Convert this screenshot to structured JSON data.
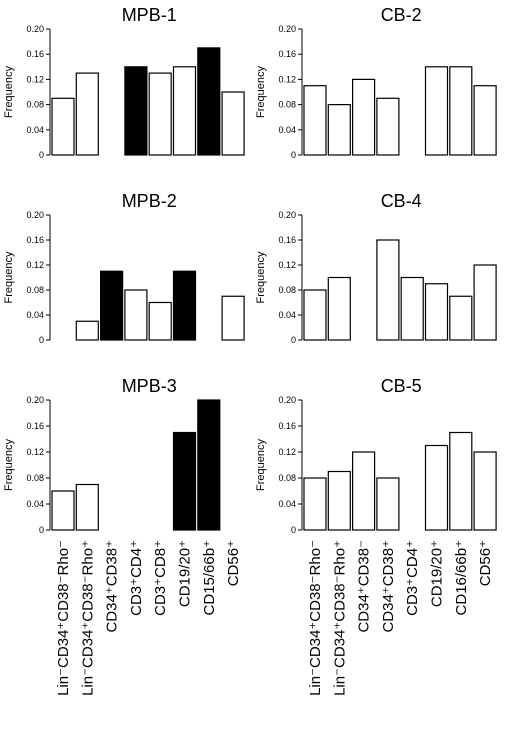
{
  "chart_data": [
    {
      "type": "bar",
      "title": "MPB-1",
      "ylabel": "Frequency",
      "ylim": [
        0,
        0.2
      ],
      "yticks": [
        "0",
        "0.04",
        "0.08",
        "0.12",
        "0.16",
        "0.20"
      ],
      "categories": [
        "Lin⁻CD34⁺CD38⁻Rho⁻",
        "Lin⁻CD34⁺CD38⁻Rho⁺",
        "CD34⁺CD38⁺",
        "CD3⁺CD4⁺",
        "CD3⁺CD8⁺",
        "CD19/20⁺",
        "CD15/66b⁺",
        "CD56⁺"
      ],
      "values": [
        0.09,
        0.13,
        null,
        0.14,
        0.13,
        0.14,
        0.17,
        0.1
      ],
      "fills": [
        "#ffffff",
        "#ffffff",
        "#ffffff",
        "#000000",
        "#ffffff",
        "#ffffff",
        "#000000",
        "#ffffff"
      ]
    },
    {
      "type": "bar",
      "title": "CB-2",
      "ylabel": "Frequency",
      "ylim": [
        0,
        0.2
      ],
      "yticks": [
        "0",
        "0.04",
        "0.08",
        "0.12",
        "0.16",
        "0.20"
      ],
      "categories": [
        "Lin⁻CD34⁺CD38⁻Rho⁻",
        "Lin⁻CD34⁺CD38⁻Rho⁺",
        "CD34⁺CD38⁻",
        "CD34⁺CD38⁺",
        "CD3⁺CD4⁺",
        "CD19/20⁺",
        "CD16/66b⁺",
        "CD56⁺"
      ],
      "values": [
        0.11,
        0.08,
        0.12,
        0.09,
        null,
        0.14,
        0.14,
        0.11
      ],
      "fills": [
        "#ffffff",
        "#ffffff",
        "#ffffff",
        "#ffffff",
        "#ffffff",
        "#ffffff",
        "#ffffff",
        "#ffffff"
      ]
    },
    {
      "type": "bar",
      "title": "MPB-2",
      "ylabel": "Frequency",
      "ylim": [
        0,
        0.2
      ],
      "yticks": [
        "0",
        "0.04",
        "0.08",
        "0.12",
        "0.16",
        "0.20"
      ],
      "categories": [
        "Lin⁻CD34⁺CD38⁻Rho⁻",
        "Lin⁻CD34⁺CD38⁻Rho⁺",
        "CD34⁺CD38⁺",
        "CD3⁺CD4⁺",
        "CD3⁺CD8⁺",
        "CD19/20⁺",
        "CD15/66b⁺",
        "CD56⁺"
      ],
      "values": [
        null,
        0.03,
        0.11,
        0.08,
        0.06,
        0.11,
        null,
        0.07
      ],
      "fills": [
        "#ffffff",
        "#ffffff",
        "#000000",
        "#ffffff",
        "#ffffff",
        "#000000",
        "#ffffff",
        "#ffffff"
      ]
    },
    {
      "type": "bar",
      "title": "CB-4",
      "ylabel": "Frequency",
      "ylim": [
        0,
        0.2
      ],
      "yticks": [
        "0",
        "0.04",
        "0.08",
        "0.12",
        "0.16",
        "0.20"
      ],
      "categories": [
        "Lin⁻CD34⁺CD38⁻Rho⁻",
        "Lin⁻CD34⁺CD38⁻Rho⁺",
        "CD34⁺CD38⁻",
        "CD34⁺CD38⁺",
        "CD3⁺CD4⁺",
        "CD19/20⁺",
        "CD16/66b⁺",
        "CD56⁺"
      ],
      "values": [
        0.08,
        0.1,
        null,
        0.16,
        0.1,
        0.09,
        0.07,
        0.12
      ],
      "fills": [
        "#ffffff",
        "#ffffff",
        "#ffffff",
        "#ffffff",
        "#ffffff",
        "#ffffff",
        "#ffffff",
        "#ffffff"
      ]
    },
    {
      "type": "bar",
      "title": "MPB-3",
      "ylabel": "Frequency",
      "ylim": [
        0,
        0.2
      ],
      "yticks": [
        "0",
        "0.04",
        "0.08",
        "0.12",
        "0.16",
        "0.20"
      ],
      "categories": [
        "Lin⁻CD34⁺CD38⁻Rho⁻",
        "Lin⁻CD34⁺CD38⁻Rho⁺",
        "CD34⁺CD38⁺",
        "CD3⁺CD4⁺",
        "CD3⁺CD8⁺",
        "CD19/20⁺",
        "CD15/66b⁺",
        "CD56⁺"
      ],
      "values": [
        0.06,
        0.07,
        null,
        null,
        null,
        0.15,
        0.2,
        null
      ],
      "fills": [
        "#ffffff",
        "#ffffff",
        "#ffffff",
        "#ffffff",
        "#ffffff",
        "#000000",
        "#000000",
        "#ffffff"
      ]
    },
    {
      "type": "bar",
      "title": "CB-5",
      "ylabel": "Frequency",
      "ylim": [
        0,
        0.2
      ],
      "yticks": [
        "0",
        "0.04",
        "0.08",
        "0.12",
        "0.16",
        "0.20"
      ],
      "categories": [
        "Lin⁻CD34⁺CD38⁻Rho⁻",
        "Lin⁻CD34⁺CD38⁻Rho⁺",
        "CD34⁺CD38⁻",
        "CD34⁺CD38⁺",
        "CD3⁺CD4⁺",
        "CD19/20⁺",
        "CD16/66b⁺",
        "CD56⁺"
      ],
      "values": [
        0.08,
        0.09,
        0.12,
        0.08,
        null,
        0.13,
        0.15,
        0.12
      ],
      "fills": [
        "#ffffff",
        "#ffffff",
        "#ffffff",
        "#ffffff",
        "#ffffff",
        "#ffffff",
        "#ffffff",
        "#ffffff"
      ]
    }
  ]
}
